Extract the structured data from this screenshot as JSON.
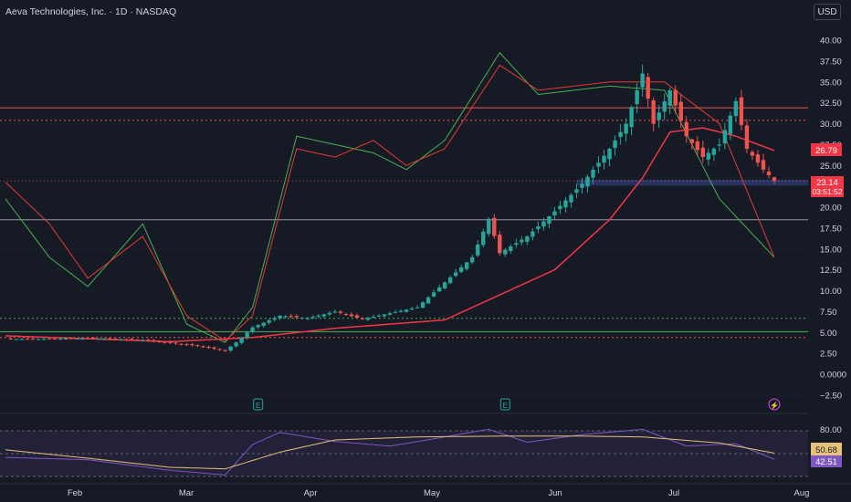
{
  "header": {
    "title": "Aeva Technologies, Inc. · 1D · NASDAQ",
    "currency": "USD"
  },
  "colors": {
    "bg": "#161a25",
    "up": "#26a69a",
    "down": "#ef5350",
    "ma_fast": "#e53935",
    "ma_slow": "#4caf50",
    "ma_long": "#f23645",
    "rsi": "#7e57c2",
    "rsi_ma": "#e8c27a",
    "axis_text": "#d1d4dc",
    "grid": "#2a2e39"
  },
  "price_scale": {
    "ticks": [
      "40.00",
      "37.50",
      "35.00",
      "32.50",
      "30.00",
      "27.50",
      "25.00",
      "22.50",
      "20.00",
      "17.50",
      "15.00",
      "12.50",
      "10.00",
      "7.50",
      "5.00",
      "2.50",
      "0.0000",
      "−2.50"
    ],
    "tick_values": [
      40,
      37.5,
      35,
      32.5,
      30,
      27.5,
      25,
      22.5,
      20,
      17.5,
      15,
      12.5,
      10,
      7.5,
      5,
      2.5,
      0,
      -2.5
    ]
  },
  "price_labels": {
    "ma_value": "26.79",
    "last_price": "23.14",
    "countdown": "03:51:52"
  },
  "rsi_panel": {
    "ticks": [
      "80.00"
    ],
    "rsi_ma_value": "50.68",
    "rsi_value": "42.51"
  },
  "time_axis": {
    "labels": [
      "Feb",
      "Mar",
      "Apr",
      "May",
      "Jun",
      "Jul",
      "Aug"
    ]
  },
  "markers": {
    "earnings": [
      "E",
      "E"
    ],
    "dividend": [
      "⚡"
    ]
  },
  "chart_data": {
    "type": "candlestick",
    "symbol": "Aeva Technologies, Inc.",
    "interval": "1D",
    "exchange": "NASDAQ",
    "ylim": [
      -2.5,
      40
    ],
    "horizontal_levels": [
      {
        "value": 31.9,
        "style": "solid",
        "color": "#ef5350"
      },
      {
        "value": 30.4,
        "style": "dotted",
        "color": "#ef5350"
      },
      {
        "value": 18.5,
        "style": "solid",
        "color": "#9598a1"
      },
      {
        "value": 6.7,
        "style": "dotted",
        "color": "#4caf50"
      },
      {
        "value": 5.1,
        "style": "solid",
        "color": "#4caf50"
      },
      {
        "value": 4.4,
        "style": "dotted",
        "color": "#ef5350"
      }
    ],
    "zone": {
      "from": 22.6,
      "to": 23.3
    },
    "price_series": [
      {
        "t": 0,
        "p": 4.2
      },
      {
        "t": 5,
        "p": 4.2
      },
      {
        "t": 15,
        "p": 4.3
      },
      {
        "t": 25,
        "p": 4.1
      },
      {
        "t": 35,
        "p": 3.4
      },
      {
        "t": 40,
        "p": 2.8
      },
      {
        "t": 42,
        "p": 3.8
      },
      {
        "t": 45,
        "p": 5.6
      },
      {
        "t": 50,
        "p": 7.0
      },
      {
        "t": 55,
        "p": 6.7
      },
      {
        "t": 60,
        "p": 7.5
      },
      {
        "t": 65,
        "p": 6.6
      },
      {
        "t": 70,
        "p": 7.3
      },
      {
        "t": 75,
        "p": 8.0
      },
      {
        "t": 80,
        "p": 11.0
      },
      {
        "t": 85,
        "p": 14.0
      },
      {
        "t": 88,
        "p": 18.6
      },
      {
        "t": 90,
        "p": 14.5
      },
      {
        "t": 95,
        "p": 16.5
      },
      {
        "t": 100,
        "p": 19.5
      },
      {
        "t": 105,
        "p": 22.8
      },
      {
        "t": 110,
        "p": 27.0
      },
      {
        "t": 113,
        "p": 30.0
      },
      {
        "t": 116,
        "p": 36.0
      },
      {
        "t": 118,
        "p": 30.0
      },
      {
        "t": 121,
        "p": 34.0
      },
      {
        "t": 124,
        "p": 28.5
      },
      {
        "t": 127,
        "p": 26.0
      },
      {
        "t": 130,
        "p": 27.5
      },
      {
        "t": 133,
        "p": 32.7
      },
      {
        "t": 135,
        "p": 27.0
      },
      {
        "t": 138,
        "p": 24.5
      },
      {
        "t": 140,
        "p": 23.14
      }
    ],
    "moving_average_long": [
      {
        "t": 0,
        "p": 4.6
      },
      {
        "t": 30,
        "p": 3.9
      },
      {
        "t": 45,
        "p": 4.4
      },
      {
        "t": 60,
        "p": 5.5
      },
      {
        "t": 80,
        "p": 6.5
      },
      {
        "t": 90,
        "p": 9.5
      },
      {
        "t": 100,
        "p": 12.5
      },
      {
        "t": 110,
        "p": 18.5
      },
      {
        "t": 116,
        "p": 23.5
      },
      {
        "t": 121,
        "p": 29.0
      },
      {
        "t": 127,
        "p": 29.5
      },
      {
        "t": 133,
        "p": 28.5
      },
      {
        "t": 140,
        "p": 26.79
      }
    ],
    "moving_average_fast_shifted": [
      {
        "t": 0,
        "p": 23
      },
      {
        "t": 8,
        "p": 18
      },
      {
        "t": 15,
        "p": 11.5
      },
      {
        "t": 25,
        "p": 16.5
      },
      {
        "t": 33,
        "p": 7
      },
      {
        "t": 40,
        "p": 4
      },
      {
        "t": 45,
        "p": 7
      },
      {
        "t": 53,
        "p": 27
      },
      {
        "t": 60,
        "p": 26
      },
      {
        "t": 67,
        "p": 28
      },
      {
        "t": 73,
        "p": 25
      },
      {
        "t": 80,
        "p": 27
      },
      {
        "t": 90,
        "p": 37
      },
      {
        "t": 97,
        "p": 34
      },
      {
        "t": 110,
        "p": 35
      },
      {
        "t": 120,
        "p": 35
      },
      {
        "t": 130,
        "p": 30
      },
      {
        "t": 140,
        "p": 14
      }
    ],
    "moving_average_slow_shifted": [
      {
        "t": 0,
        "p": 21
      },
      {
        "t": 8,
        "p": 14
      },
      {
        "t": 15,
        "p": 10.5
      },
      {
        "t": 25,
        "p": 18
      },
      {
        "t": 33,
        "p": 6
      },
      {
        "t": 40,
        "p": 3.8
      },
      {
        "t": 45,
        "p": 8
      },
      {
        "t": 53,
        "p": 28.5
      },
      {
        "t": 60,
        "p": 27.5
      },
      {
        "t": 67,
        "p": 26.5
      },
      {
        "t": 73,
        "p": 24.5
      },
      {
        "t": 80,
        "p": 28
      },
      {
        "t": 90,
        "p": 38.5
      },
      {
        "t": 97,
        "p": 33.5
      },
      {
        "t": 110,
        "p": 34.5
      },
      {
        "t": 120,
        "p": 34
      },
      {
        "t": 130,
        "p": 21
      },
      {
        "t": 140,
        "p": 14
      }
    ],
    "rsi": {
      "rsi_value": 42.51,
      "rsi_ma_value": 50.68,
      "upper_band": 80,
      "lower_band": 20,
      "rsi_series": [
        {
          "t": 0,
          "v": 45
        },
        {
          "t": 15,
          "v": 42
        },
        {
          "t": 30,
          "v": 28
        },
        {
          "t": 40,
          "v": 22
        },
        {
          "t": 45,
          "v": 62
        },
        {
          "t": 50,
          "v": 78
        },
        {
          "t": 60,
          "v": 66
        },
        {
          "t": 70,
          "v": 60
        },
        {
          "t": 80,
          "v": 72
        },
        {
          "t": 88,
          "v": 82
        },
        {
          "t": 95,
          "v": 65
        },
        {
          "t": 105,
          "v": 75
        },
        {
          "t": 116,
          "v": 82
        },
        {
          "t": 124,
          "v": 60
        },
        {
          "t": 133,
          "v": 63
        },
        {
          "t": 140,
          "v": 42.51
        }
      ],
      "rsi_ma_series": [
        {
          "t": 0,
          "v": 55
        },
        {
          "t": 15,
          "v": 44
        },
        {
          "t": 30,
          "v": 32
        },
        {
          "t": 40,
          "v": 30
        },
        {
          "t": 50,
          "v": 52
        },
        {
          "t": 60,
          "v": 68
        },
        {
          "t": 75,
          "v": 72
        },
        {
          "t": 90,
          "v": 73
        },
        {
          "t": 105,
          "v": 73
        },
        {
          "t": 116,
          "v": 72
        },
        {
          "t": 130,
          "v": 64
        },
        {
          "t": 140,
          "v": 50.68
        }
      ]
    }
  }
}
